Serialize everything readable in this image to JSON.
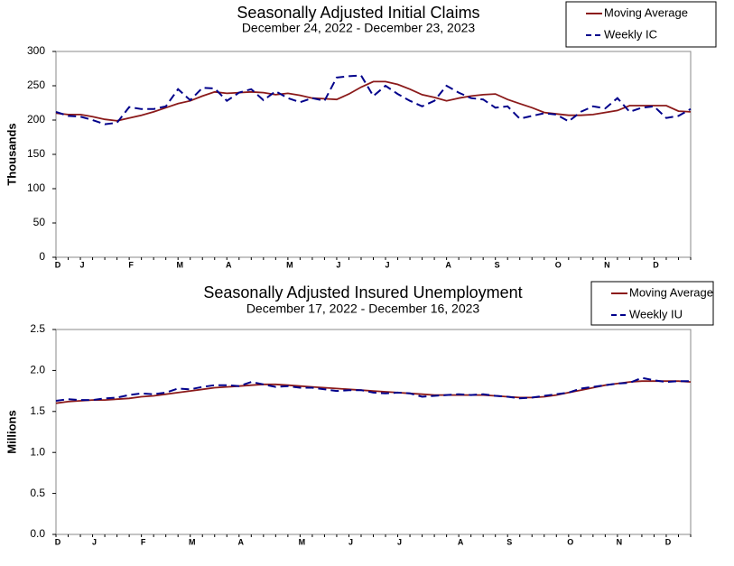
{
  "chart_data": [
    {
      "type": "line",
      "title": "Seasonally Adjusted Initial Claims",
      "subtitle": "December 24, 2022 - December 23, 2023",
      "ylabel": "Thousands",
      "categories": [
        "D",
        null,
        "J",
        null,
        null,
        null,
        "F",
        null,
        null,
        null,
        "M",
        null,
        null,
        null,
        "A",
        null,
        null,
        null,
        null,
        "M",
        null,
        null,
        null,
        "J",
        null,
        null,
        null,
        "J",
        null,
        null,
        null,
        null,
        "A",
        null,
        null,
        null,
        "S",
        null,
        null,
        null,
        null,
        "O",
        null,
        null,
        null,
        "N",
        null,
        null,
        null,
        "D",
        null,
        null,
        null
      ],
      "series": [
        {
          "name": "Moving Average",
          "color": "#8b1a1a",
          "dashed": false,
          "values": [
            210,
            208,
            208,
            205,
            201,
            199,
            203,
            207,
            212,
            218,
            224,
            228,
            235,
            241,
            239,
            240,
            241,
            240,
            237,
            239,
            236,
            232,
            231,
            230,
            238,
            248,
            256,
            256,
            252,
            245,
            237,
            233,
            228,
            232,
            235,
            237,
            238,
            230,
            224,
            218,
            211,
            209,
            207,
            207,
            208,
            211,
            214,
            221,
            221,
            221,
            221,
            213,
            212
          ]
        },
        {
          "name": "Weekly IC",
          "color": "#00008b",
          "dashed": true,
          "values": [
            212,
            206,
            205,
            200,
            194,
            196,
            219,
            216,
            216,
            220,
            245,
            229,
            247,
            246,
            228,
            240,
            245,
            229,
            242,
            232,
            226,
            232,
            228,
            262,
            264,
            265,
            235,
            250,
            238,
            228,
            220,
            228,
            250,
            240,
            232,
            230,
            218,
            220,
            202,
            206,
            210,
            208,
            198,
            212,
            220,
            217,
            232,
            212,
            218,
            220,
            203,
            206,
            216
          ]
        }
      ],
      "ylim": [
        0,
        300
      ],
      "yticks": [
        0,
        50,
        100,
        150,
        200,
        250,
        300
      ],
      "grid": false
    },
    {
      "type": "line",
      "title": "Seasonally Adjusted Insured Unemployment",
      "subtitle": "December 17, 2022 - December 16, 2023",
      "ylabel": "Millions",
      "categories": [
        "D",
        null,
        null,
        "J",
        null,
        null,
        null,
        "F",
        null,
        null,
        null,
        "M",
        null,
        null,
        null,
        "A",
        null,
        null,
        null,
        null,
        "M",
        null,
        null,
        null,
        "J",
        null,
        null,
        null,
        "J",
        null,
        null,
        null,
        null,
        "A",
        null,
        null,
        null,
        "S",
        null,
        null,
        null,
        null,
        "O",
        null,
        null,
        null,
        "N",
        null,
        null,
        null,
        "D",
        null,
        null
      ],
      "series": [
        {
          "name": "Moving Average",
          "color": "#8b1a1a",
          "dashed": false,
          "values": [
            1.6,
            1.62,
            1.63,
            1.64,
            1.64,
            1.65,
            1.66,
            1.68,
            1.69,
            1.71,
            1.73,
            1.75,
            1.77,
            1.79,
            1.8,
            1.81,
            1.82,
            1.83,
            1.83,
            1.82,
            1.81,
            1.8,
            1.79,
            1.78,
            1.77,
            1.76,
            1.75,
            1.74,
            1.73,
            1.72,
            1.71,
            1.7,
            1.7,
            1.7,
            1.7,
            1.7,
            1.69,
            1.68,
            1.67,
            1.67,
            1.68,
            1.7,
            1.73,
            1.76,
            1.79,
            1.82,
            1.84,
            1.86,
            1.87,
            1.87,
            1.87,
            1.87,
            1.86
          ]
        },
        {
          "name": "Weekly IU",
          "color": "#00008b",
          "dashed": true,
          "values": [
            1.63,
            1.65,
            1.64,
            1.64,
            1.66,
            1.67,
            1.7,
            1.72,
            1.71,
            1.73,
            1.78,
            1.77,
            1.8,
            1.82,
            1.82,
            1.81,
            1.86,
            1.83,
            1.8,
            1.81,
            1.79,
            1.79,
            1.77,
            1.75,
            1.76,
            1.76,
            1.73,
            1.72,
            1.73,
            1.72,
            1.68,
            1.69,
            1.7,
            1.71,
            1.7,
            1.71,
            1.69,
            1.68,
            1.66,
            1.67,
            1.69,
            1.71,
            1.73,
            1.78,
            1.8,
            1.82,
            1.84,
            1.85,
            1.91,
            1.88,
            1.86,
            1.87,
            1.87
          ]
        }
      ],
      "ylim": [
        0,
        2.5
      ],
      "yticks": [
        {
          "value": 0,
          "label": "0.0"
        },
        0.5,
        {
          "value": 1,
          "label": "1.0"
        },
        1.5,
        {
          "value": 2,
          "label": "2.0"
        },
        2.5
      ],
      "grid": false
    }
  ]
}
